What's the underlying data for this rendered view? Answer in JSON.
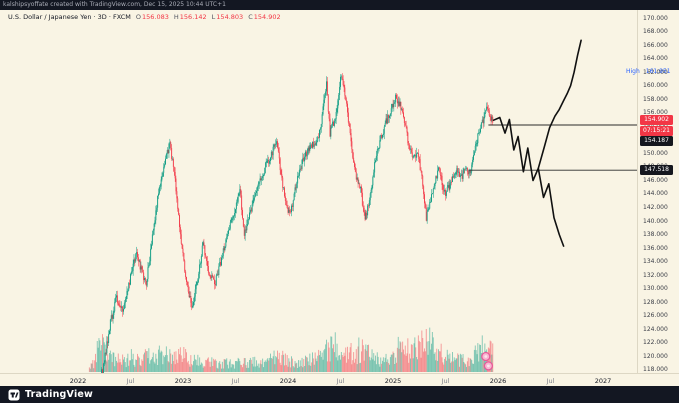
{
  "topbar": {
    "text": "kalshipsyoffate created with TradingView.com, Dec 15, 2025 10:44 UTC+1"
  },
  "legend": {
    "title": "U.S. Dollar / Japanese Yen · 3D · FXCM",
    "o_label": "O",
    "o_val": "156.083",
    "h_label": "H",
    "h_val": "156.142",
    "l_label": "L",
    "l_val": "154.803",
    "c_label": "C",
    "c_val": "154.902"
  },
  "axis": {
    "last_price": "154.902",
    "countdown": "07:15:21",
    "level_upper": "154.187",
    "level_lower": "147.518",
    "high_text": "High",
    "high_value": "161.951"
  },
  "footer": {
    "brand": "TradingView"
  },
  "colors": {
    "background": "#f9f4e4",
    "up": "#089981",
    "down": "#f23645",
    "volume_up": "rgba(8,153,129,0.5)",
    "volume_down": "rgba(242,54,69,0.5)",
    "last_badge": "#f23645",
    "level_badge": "#15171e",
    "high_label": "#2962ff",
    "drawing": "#111111"
  },
  "chart_data": {
    "type": "candlestick",
    "symbol": "U.S. Dollar / Japanese Yen",
    "interval": "3D",
    "exchange": "FXCM",
    "ohlc": {
      "open": 156.083,
      "high": 156.142,
      "low": 154.803,
      "close": 154.902
    },
    "y_axis": {
      "min": 118,
      "max": 170,
      "tick_step": 2
    },
    "x_axis": {
      "labels": [
        {
          "text": "2022",
          "month": 0,
          "major": true
        },
        {
          "text": "Jul",
          "month": 6,
          "major": false
        },
        {
          "text": "2023",
          "month": 12,
          "major": true
        },
        {
          "text": "Jul",
          "month": 18,
          "major": false
        },
        {
          "text": "2024",
          "month": 24,
          "major": true
        },
        {
          "text": "Jul",
          "month": 30,
          "major": false
        },
        {
          "text": "2025",
          "month": 36,
          "major": true
        },
        {
          "text": "Jul",
          "month": 42,
          "major": false
        },
        {
          "text": "2026",
          "month": 48,
          "major": true
        },
        {
          "text": "Jul",
          "month": 54,
          "major": false
        },
        {
          "text": "2027",
          "month": 60,
          "major": true
        }
      ]
    },
    "series_start_month": 1.3,
    "series_end_month": 47.5,
    "candle_step_months": 0.1,
    "price_anchors": [
      [
        1.3,
        115.2
      ],
      [
        2.2,
        114.6
      ],
      [
        3.0,
        118.5
      ],
      [
        3.8,
        125.0
      ],
      [
        4.5,
        128.8
      ],
      [
        5.2,
        126.8
      ],
      [
        6.0,
        131.0
      ],
      [
        6.8,
        135.8
      ],
      [
        7.3,
        132.8
      ],
      [
        7.9,
        130.8
      ],
      [
        8.6,
        137.5
      ],
      [
        9.3,
        144.5
      ],
      [
        10.0,
        148.5
      ],
      [
        10.6,
        151.6
      ],
      [
        11.2,
        146.0
      ],
      [
        11.8,
        137.8
      ],
      [
        12.5,
        131.0
      ],
      [
        13.1,
        127.4
      ],
      [
        13.8,
        131.5
      ],
      [
        14.4,
        136.8
      ],
      [
        15.0,
        132.8
      ],
      [
        15.7,
        130.6
      ],
      [
        16.4,
        134.0
      ],
      [
        17.1,
        137.8
      ],
      [
        17.9,
        140.8
      ],
      [
        18.6,
        144.6
      ],
      [
        19.1,
        138.3
      ],
      [
        19.9,
        141.8
      ],
      [
        20.7,
        145.2
      ],
      [
        21.4,
        147.6
      ],
      [
        22.1,
        149.6
      ],
      [
        22.8,
        151.7
      ],
      [
        23.3,
        147.2
      ],
      [
        23.9,
        141.8
      ],
      [
        24.4,
        141.2
      ],
      [
        24.9,
        144.8
      ],
      [
        25.6,
        148.2
      ],
      [
        26.3,
        150.4
      ],
      [
        27.1,
        151.6
      ],
      [
        27.8,
        153.2
      ],
      [
        28.2,
        157.8
      ],
      [
        28.5,
        160.2
      ],
      [
        28.9,
        153.0
      ],
      [
        29.6,
        155.8
      ],
      [
        30.2,
        161.8
      ],
      [
        30.8,
        157.2
      ],
      [
        31.3,
        151.8
      ],
      [
        31.9,
        146.2
      ],
      [
        32.4,
        144.6
      ],
      [
        32.9,
        140.2
      ],
      [
        33.4,
        143.2
      ],
      [
        33.9,
        147.6
      ],
      [
        34.6,
        151.8
      ],
      [
        35.3,
        154.6
      ],
      [
        35.9,
        156.6
      ],
      [
        36.4,
        158.2
      ],
      [
        36.9,
        157.4
      ],
      [
        37.4,
        154.8
      ],
      [
        37.9,
        151.4
      ],
      [
        38.4,
        149.2
      ],
      [
        38.9,
        150.2
      ],
      [
        39.4,
        146.4
      ],
      [
        39.9,
        140.6
      ],
      [
        40.4,
        143.2
      ],
      [
        40.9,
        145.6
      ],
      [
        41.4,
        148.2
      ],
      [
        41.9,
        143.9
      ],
      [
        42.4,
        144.8
      ],
      [
        42.9,
        146.6
      ],
      [
        43.4,
        147.4
      ],
      [
        43.9,
        146.6
      ],
      [
        44.4,
        147.6
      ],
      [
        44.9,
        146.9
      ],
      [
        45.4,
        150.2
      ],
      [
        45.9,
        153.2
      ],
      [
        46.4,
        154.8
      ],
      [
        46.9,
        157.0
      ],
      [
        47.2,
        155.6
      ],
      [
        47.5,
        154.9
      ]
    ],
    "volume_anchors": [
      [
        1.3,
        6
      ],
      [
        2.0,
        14
      ],
      [
        2.6,
        48
      ],
      [
        3.2,
        20
      ],
      [
        4.0,
        16
      ],
      [
        5.0,
        14
      ],
      [
        6.0,
        18
      ],
      [
        7.0,
        14
      ],
      [
        8.0,
        20
      ],
      [
        9.0,
        22
      ],
      [
        10.0,
        24
      ],
      [
        11.0,
        18
      ],
      [
        12.0,
        22
      ],
      [
        13.0,
        16
      ],
      [
        14.0,
        14
      ],
      [
        15.0,
        12
      ],
      [
        16.0,
        10
      ],
      [
        17.0,
        12
      ],
      [
        18.0,
        11
      ],
      [
        19.0,
        13
      ],
      [
        20.0,
        12
      ],
      [
        21.0,
        14
      ],
      [
        22.0,
        16
      ],
      [
        23.0,
        18
      ],
      [
        24.0,
        14
      ],
      [
        25.0,
        12
      ],
      [
        26.0,
        13
      ],
      [
        27.0,
        16
      ],
      [
        28.0,
        22
      ],
      [
        29.0,
        30
      ],
      [
        30.0,
        34
      ],
      [
        30.8,
        26
      ],
      [
        31.5,
        22
      ],
      [
        32.3,
        30
      ],
      [
        33.0,
        22
      ],
      [
        34.0,
        18
      ],
      [
        35.0,
        16
      ],
      [
        36.0,
        22
      ],
      [
        36.8,
        30
      ],
      [
        37.5,
        26
      ],
      [
        38.3,
        34
      ],
      [
        39.0,
        30
      ],
      [
        39.8,
        48
      ],
      [
        40.5,
        34
      ],
      [
        41.3,
        26
      ],
      [
        42.0,
        20
      ],
      [
        43.0,
        16
      ],
      [
        44.0,
        14
      ],
      [
        45.0,
        18
      ],
      [
        45.8,
        26
      ],
      [
        46.5,
        30
      ],
      [
        47.5,
        22
      ]
    ],
    "levels": [
      {
        "price": 154.187,
        "label": "154.187",
        "start_month": 46.9
      },
      {
        "price": 147.518,
        "label": "147.518",
        "start_month": 44.6
      }
    ],
    "last_price": {
      "value": 154.902,
      "label": "154.902",
      "countdown": "07:15:21"
    },
    "high_marker": {
      "text": "High",
      "value": 161.951
    },
    "projection_paths": [
      {
        "name": "down-scenario",
        "points": [
          [
            47.5,
            154.9
          ],
          [
            48.2,
            155.3
          ],
          [
            48.8,
            153.0
          ],
          [
            49.3,
            155.0
          ],
          [
            49.8,
            150.5
          ],
          [
            50.3,
            152.5
          ],
          [
            50.9,
            147.3
          ],
          [
            51.4,
            150.8
          ],
          [
            52.0,
            146.0
          ],
          [
            52.6,
            147.8
          ],
          [
            53.2,
            143.5
          ],
          [
            53.8,
            145.5
          ],
          [
            54.4,
            140.5
          ],
          [
            55.0,
            138.0
          ],
          [
            55.5,
            136.3
          ]
        ]
      },
      {
        "name": "up-scenario",
        "points": [
          [
            52.6,
            147.8
          ],
          [
            53.3,
            151.0
          ],
          [
            53.9,
            153.8
          ],
          [
            54.5,
            155.5
          ],
          [
            55.0,
            156.5
          ],
          [
            55.5,
            157.8
          ],
          [
            55.9,
            158.8
          ],
          [
            56.3,
            160.0
          ],
          [
            56.7,
            162.0
          ],
          [
            57.1,
            164.5
          ],
          [
            57.5,
            166.7
          ]
        ]
      }
    ],
    "stickers": [
      {
        "month": 46.6,
        "price": 120.0
      },
      {
        "month": 46.9,
        "price": 118.6
      }
    ]
  }
}
